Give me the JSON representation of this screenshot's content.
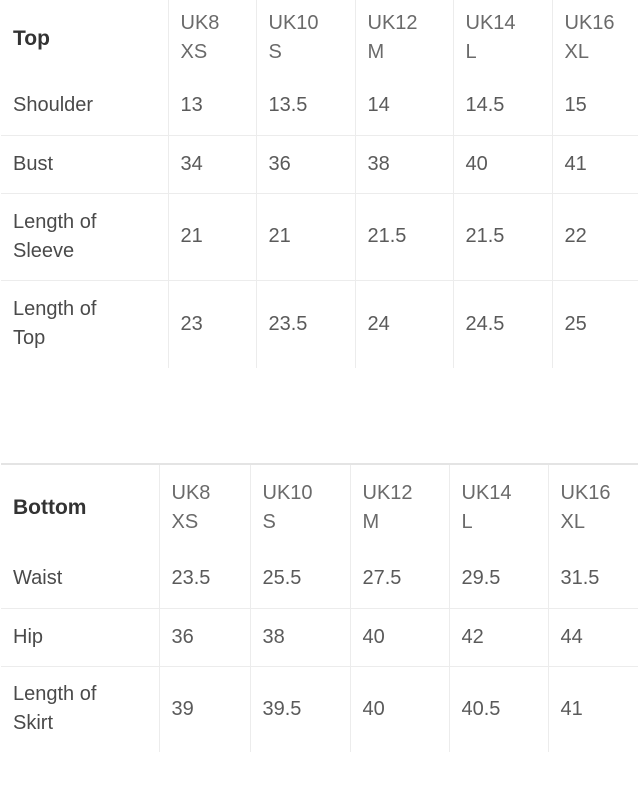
{
  "top_table": {
    "title": "Top",
    "sizes": [
      "UK8\nXS",
      "UK10\nS",
      "UK12\nM",
      "UK14\nL",
      "UK16\nXL"
    ],
    "rows": [
      {
        "label": "Shoulder",
        "values": [
          "13",
          "13.5",
          "14",
          "14.5",
          "15"
        ]
      },
      {
        "label": "Bust",
        "values": [
          "34",
          "36",
          "38",
          "40",
          "41"
        ]
      },
      {
        "label": "Length of\nSleeve",
        "values": [
          "21",
          "21",
          "21.5",
          "21.5",
          "22"
        ]
      },
      {
        "label": "Length of\nTop",
        "values": [
          "23",
          "23.5",
          "24",
          "24.5",
          "25"
        ]
      }
    ]
  },
  "bottom_table": {
    "title": "Bottom",
    "sizes": [
      "UK8\nXS",
      "UK10\nS",
      "UK12\nM",
      "UK14\nL",
      "UK16\nXL"
    ],
    "rows": [
      {
        "label": "Waist",
        "values": [
          "23.5",
          "25.5",
          "27.5",
          "29.5",
          "31.5"
        ]
      },
      {
        "label": "Hip",
        "values": [
          "36",
          "38",
          "40",
          "42",
          "44"
        ]
      },
      {
        "label": "Length of\nSkirt",
        "values": [
          "39",
          "39.5",
          "40",
          "40.5",
          "41"
        ]
      }
    ]
  }
}
